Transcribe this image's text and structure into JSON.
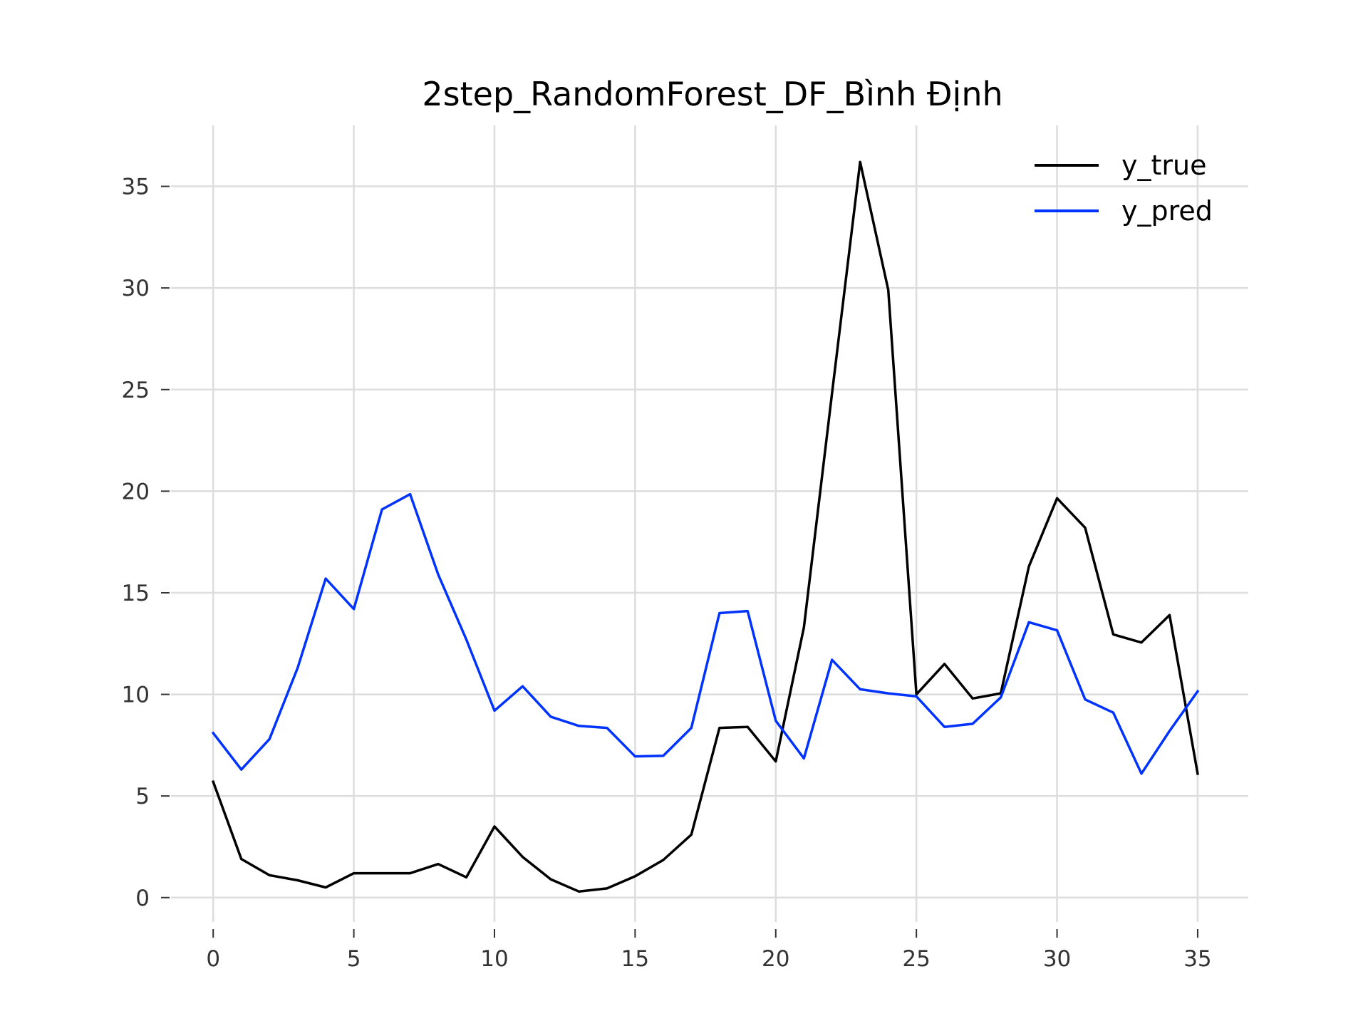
{
  "chart_data": {
    "type": "line",
    "title": "2step_RandomForest_DF_Bình Định",
    "xlabel": "",
    "ylabel": "",
    "xlim": [
      -1.5,
      36.8
    ],
    "ylim": [
      -1.2,
      38.0
    ],
    "x_ticks": [
      0,
      5,
      10,
      15,
      20,
      25,
      30,
      35
    ],
    "y_ticks": [
      0,
      5,
      10,
      15,
      20,
      25,
      30,
      35
    ],
    "grid": true,
    "legend_position": "top-right",
    "x": [
      0,
      1,
      2,
      3,
      4,
      5,
      6,
      7,
      8,
      9,
      10,
      11,
      12,
      13,
      14,
      15,
      16,
      17,
      18,
      19,
      20,
      21,
      22,
      23,
      24,
      25,
      26,
      27,
      28,
      29,
      30,
      31,
      32,
      33,
      34,
      35
    ],
    "series": [
      {
        "name": "y_true",
        "color": "#000000",
        "values": [
          5.7,
          1.9,
          1.1,
          0.85,
          0.5,
          1.2,
          1.2,
          1.2,
          1.65,
          1.0,
          3.5,
          2.0,
          0.9,
          0.3,
          0.45,
          1.05,
          1.85,
          3.1,
          8.35,
          8.4,
          6.7,
          13.3,
          24.8,
          36.2,
          29.9,
          10.0,
          11.5,
          9.8,
          10.05,
          16.3,
          19.65,
          18.2,
          12.95,
          12.55,
          13.9,
          6.1
        ]
      },
      {
        "name": "y_pred",
        "color": "#0033ff",
        "values": [
          8.1,
          6.3,
          7.8,
          11.3,
          15.7,
          14.2,
          19.1,
          19.85,
          15.9,
          12.7,
          9.2,
          10.4,
          8.9,
          8.45,
          8.35,
          6.95,
          6.98,
          8.35,
          14.0,
          14.1,
          8.7,
          6.85,
          11.7,
          10.25,
          10.05,
          9.9,
          8.4,
          8.55,
          9.85,
          13.55,
          13.15,
          9.75,
          9.1,
          6.1,
          8.2,
          10.15
        ]
      }
    ]
  }
}
